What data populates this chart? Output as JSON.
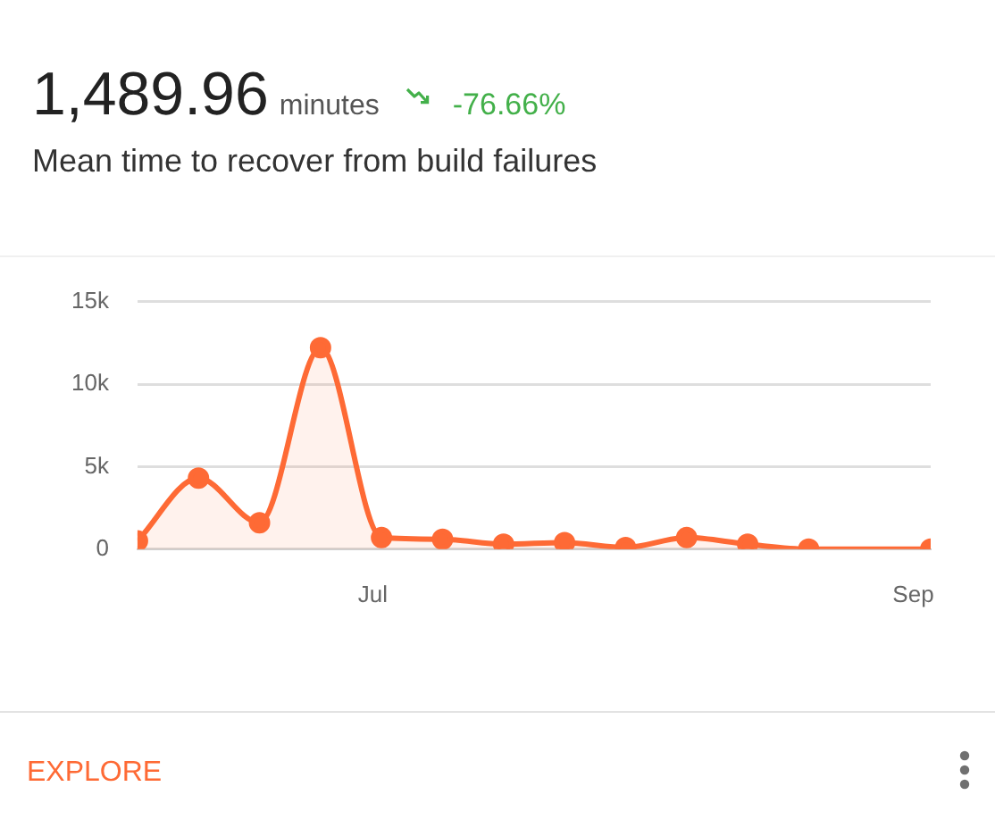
{
  "chart_data": {
    "type": "area",
    "title": "1,489.96",
    "subtitle": "Mean time to recover from build failures",
    "annotations": [
      "minutes",
      "-76.66%",
      "EXPLORE"
    ],
    "x": [
      "--06-04",
      "--06-11",
      "--06-18",
      "--06-25",
      "--07-02",
      "--07-09",
      "--07-16",
      "--07-23",
      "--07-30",
      "--08-06",
      "--08-13",
      "--08-20",
      "--09-03"
    ],
    "values": [
      500,
      4300,
      1600,
      12200,
      700,
      600,
      300,
      400,
      100,
      700,
      300,
      0,
      0
    ],
    "color": "#fe6a35",
    "xlim": [
      "--06-04",
      "--09-03"
    ],
    "xticks": [
      {
        "value": "--07-01",
        "label": "Jul"
      },
      {
        "value": "--09-01",
        "label": "Sep"
      }
    ],
    "ylim": [
      0,
      15000
    ],
    "yticks": [
      0,
      {
        "value": 5000,
        "label": "5k"
      },
      {
        "value": 10000,
        "label": "10k"
      },
      {
        "value": 15000,
        "label": "15k"
      }
    ],
    "grid": "y",
    "marker": "circle"
  }
}
